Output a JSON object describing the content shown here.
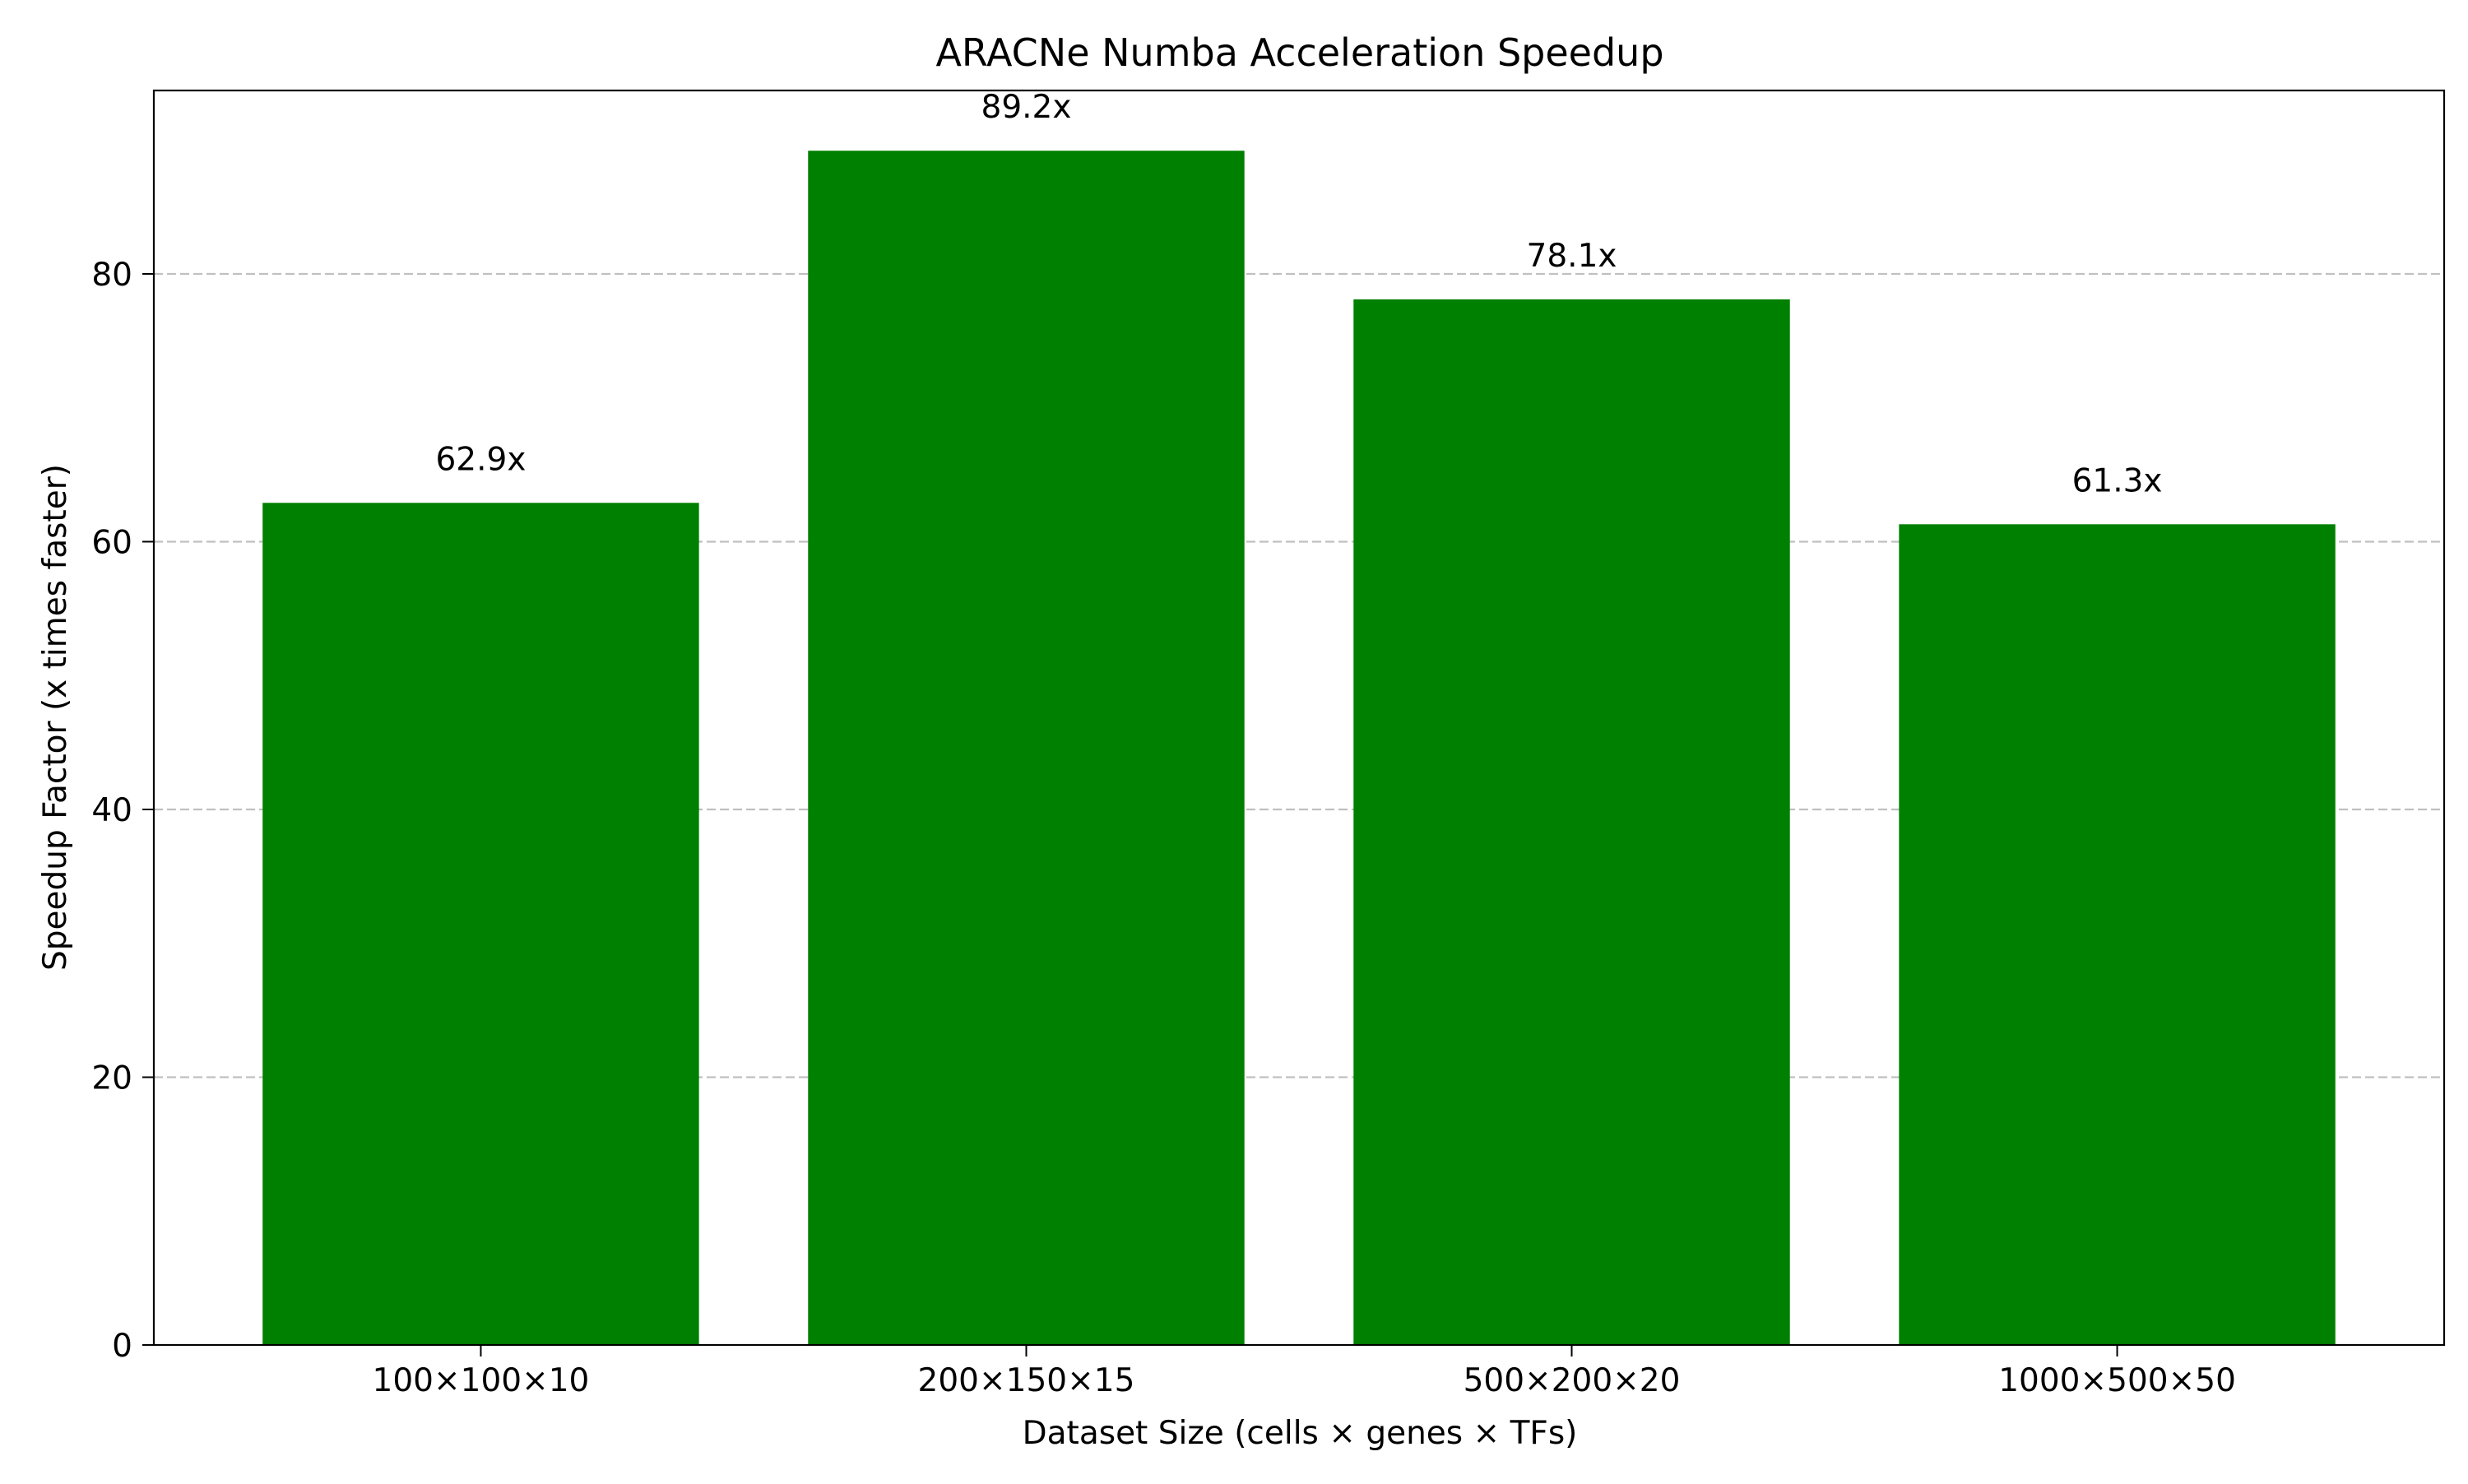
{
  "chart_data": {
    "type": "bar",
    "title": "ARACNe Numba Acceleration Speedup",
    "xlabel": "Dataset Size (cells × genes × TFs)",
    "ylabel": "Speedup Factor (x times faster)",
    "categories": [
      "100×100×10",
      "200×150×15",
      "500×200×20",
      "1000×500×50"
    ],
    "values": [
      62.9,
      89.2,
      78.1,
      61.3
    ],
    "value_labels": [
      "62.9x",
      "89.2x",
      "78.1x",
      "61.3x"
    ],
    "ylim": [
      0,
      93.7
    ],
    "yticks": [
      0,
      20,
      40,
      60,
      80
    ],
    "grid": "y-dashed",
    "bar_color": "#008000",
    "grid_color": "#c0c0c0",
    "legend": "none"
  }
}
